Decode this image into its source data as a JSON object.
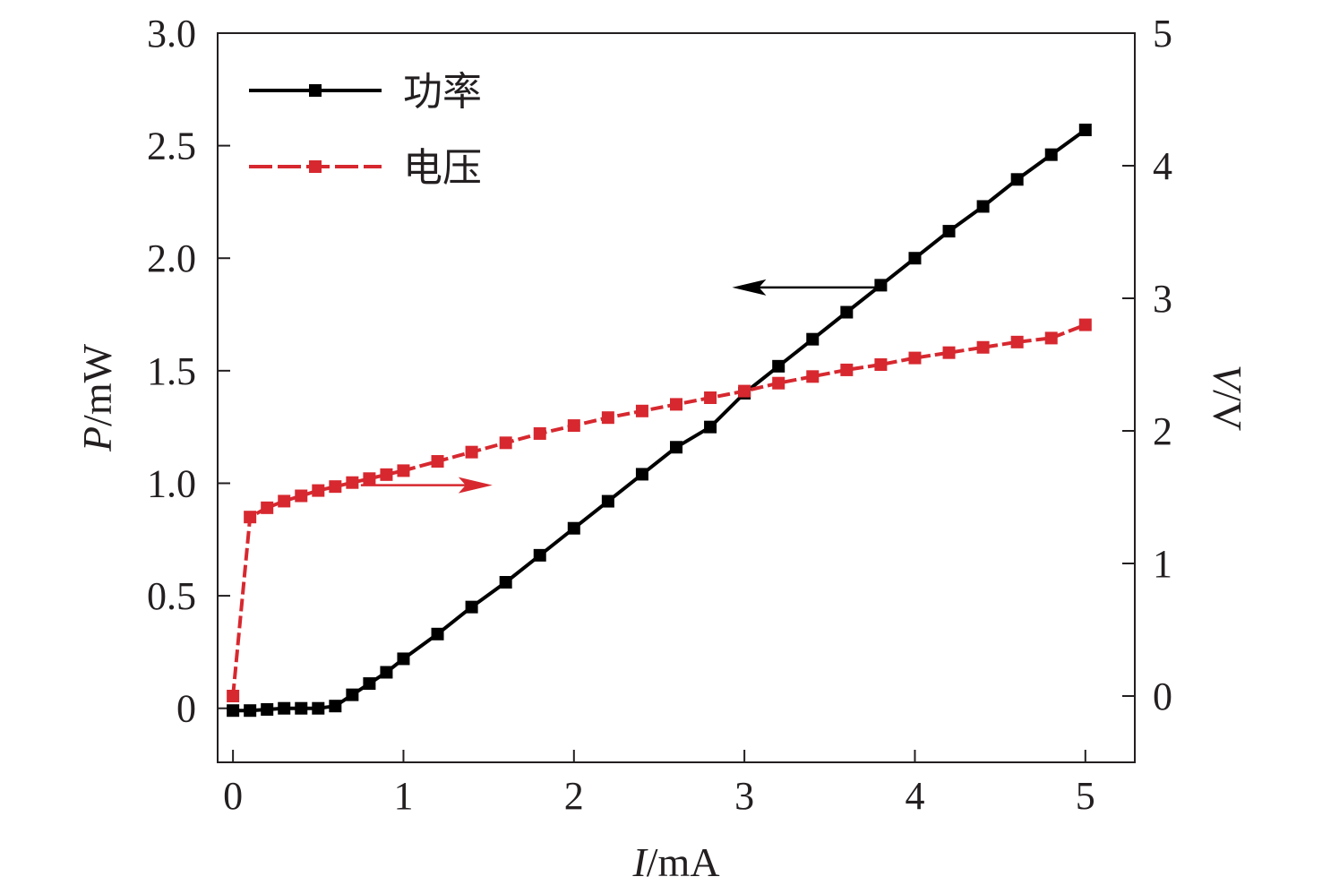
{
  "chart_data": {
    "type": "line",
    "title": "",
    "xlabel": {
      "var": "I",
      "unit": "/mA"
    },
    "ylabel_left": {
      "var": "P",
      "unit": "/mW"
    },
    "ylabel_right": {
      "var": "V",
      "unit": "/V"
    },
    "xlim": [
      -0.09,
      5.29
    ],
    "ylim_left": [
      -0.24,
      3.0
    ],
    "ylim_right": [
      -0.5,
      5.0
    ],
    "xticks": [
      0,
      1,
      2,
      3,
      4,
      5
    ],
    "xtick_labels": [
      "0",
      "1",
      "2",
      "3",
      "4",
      "5"
    ],
    "yticks_left": [
      0,
      0.5,
      1.0,
      1.5,
      2.0,
      2.5,
      3.0
    ],
    "ytick_labels_left": [
      "0",
      "0.5",
      "1.0",
      "1.5",
      "2.0",
      "2.5",
      "3.0"
    ],
    "yticks_right": [
      0,
      1,
      2,
      3,
      4,
      5
    ],
    "ytick_labels_right": [
      "0",
      "1",
      "2",
      "3",
      "4",
      "5"
    ],
    "grid": false,
    "legend_position": "top-left",
    "x": [
      0,
      0.1,
      0.2,
      0.3,
      0.4,
      0.5,
      0.6,
      0.7,
      0.8,
      0.9,
      1.0,
      1.2,
      1.4,
      1.6,
      1.8,
      2.0,
      2.2,
      2.4,
      2.6,
      2.8,
      3.0,
      3.2,
      3.4,
      3.6,
      3.8,
      4.0,
      4.2,
      4.4,
      4.6,
      4.8,
      5.0
    ],
    "series": [
      {
        "name": "功率",
        "axis": "left",
        "color": "#000000",
        "line_style": "solid",
        "marker": "square",
        "values": [
          -0.01,
          -0.01,
          -0.005,
          0,
          0,
          0,
          0.01,
          0.06,
          0.11,
          0.16,
          0.22,
          0.33,
          0.45,
          0.56,
          0.68,
          0.8,
          0.92,
          1.04,
          1.16,
          1.25,
          1.4,
          1.52,
          1.64,
          1.76,
          1.88,
          2.0,
          2.12,
          2.23,
          2.35,
          2.46,
          2.57
        ]
      },
      {
        "name": "电压",
        "axis": "right",
        "color": "#d7282f",
        "line_style": "dashed",
        "marker": "square",
        "values": [
          0,
          1.35,
          1.42,
          1.47,
          1.51,
          1.55,
          1.58,
          1.61,
          1.64,
          1.67,
          1.7,
          1.77,
          1.84,
          1.91,
          1.98,
          2.04,
          2.1,
          2.15,
          2.2,
          2.25,
          2.3,
          2.36,
          2.41,
          2.46,
          2.5,
          2.55,
          2.59,
          2.63,
          2.67,
          2.7,
          2.8
        ]
      }
    ],
    "annotations": [
      {
        "type": "arrow",
        "color": "#000000",
        "direction": "left",
        "from": {
          "x": 3.8,
          "y": 1.87,
          "axis": "left"
        },
        "to": {
          "x": 2.97,
          "y": 1.87,
          "axis": "left"
        }
      },
      {
        "type": "arrow",
        "color": "#d7282f",
        "direction": "right",
        "from": {
          "x": 0.75,
          "y": 1.59,
          "axis": "right"
        },
        "to": {
          "x": 1.48,
          "y": 1.59,
          "axis": "right"
        }
      }
    ]
  }
}
